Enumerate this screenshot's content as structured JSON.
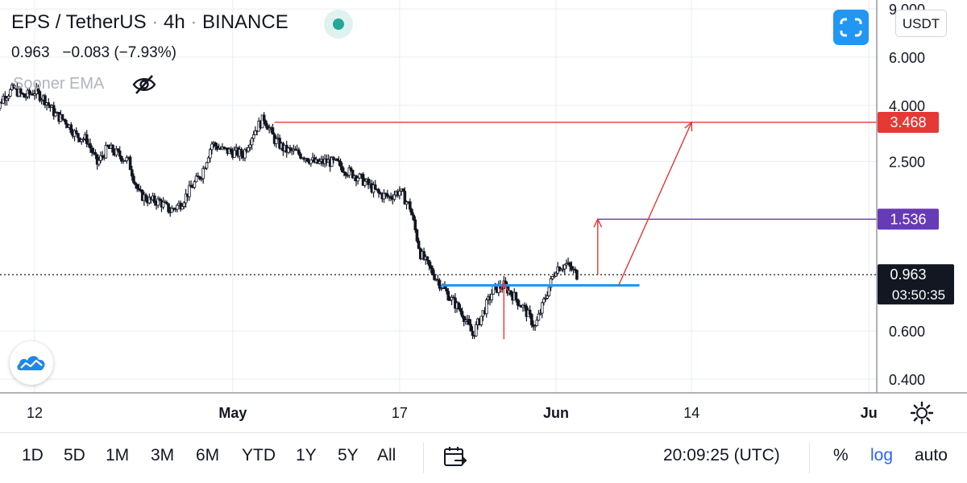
{
  "header": {
    "symbol": "EPS / TetherUS",
    "interval": "4h",
    "exchange": "BINANCE",
    "separator": "·"
  },
  "price_line": {
    "last": "0.963",
    "change": "−0.083",
    "change_pct": "(−7.93%)"
  },
  "indicator": {
    "name": "Sooner EMA"
  },
  "currency_button": {
    "label": "USDT"
  },
  "price_labels": {
    "target_high": "3.468",
    "target_mid": "1.536",
    "current": "0.963",
    "countdown": "03:50:35"
  },
  "toolbar": {
    "ranges": [
      "1D",
      "5D",
      "1M",
      "3M",
      "6M",
      "YTD",
      "1Y",
      "5Y",
      "All"
    ],
    "time": "20:09:25 (UTC)",
    "percent": "%",
    "log": "log",
    "auto": "auto"
  },
  "colors": {
    "grid": "#e9ecf2",
    "candle": "#131722",
    "red": "#e53935",
    "purple": "#673ab7",
    "blue": "#2196f3",
    "black": "#131722"
  },
  "chart_data": {
    "type": "candlestick",
    "y_scale": "log",
    "ylim": [
      0.36,
      9.0
    ],
    "y_ticks": [
      {
        "label": "9.000",
        "value": 9.0
      },
      {
        "label": "6.000",
        "value": 6.0
      },
      {
        "label": "4.000",
        "value": 4.0
      },
      {
        "label": "2.500",
        "value": 2.5
      },
      {
        "label": "0.600",
        "value": 0.6
      },
      {
        "label": "0.400",
        "value": 0.4
      }
    ],
    "x_ticks": [
      {
        "label": "12",
        "date": "2021-04-12"
      },
      {
        "label": "May",
        "date": "2021-05-01"
      },
      {
        "label": "17",
        "date": "2021-05-17"
      },
      {
        "label": "Jun",
        "date": "2021-06-01"
      },
      {
        "label": "14",
        "date": "2021-06-14"
      },
      {
        "label": "Ju",
        "date": "2021-07-01"
      }
    ],
    "x_range": [
      "2021-04-08",
      "2021-07-01"
    ],
    "price_path": [
      [
        "2021-04-08",
        3.6
      ],
      [
        "2021-04-09",
        4.3
      ],
      [
        "2021-04-10",
        4.6
      ],
      [
        "2021-04-11",
        4.3
      ],
      [
        "2021-04-12",
        4.5
      ],
      [
        "2021-04-13",
        4.2
      ],
      [
        "2021-04-14",
        3.7
      ],
      [
        "2021-04-15",
        3.5
      ],
      [
        "2021-04-16",
        3.1
      ],
      [
        "2021-04-17",
        3.0
      ],
      [
        "2021-04-18",
        2.45
      ],
      [
        "2021-04-19",
        2.8
      ],
      [
        "2021-04-20",
        2.65
      ],
      [
        "2021-04-21",
        2.5
      ],
      [
        "2021-04-22",
        1.9
      ],
      [
        "2021-04-23",
        1.8
      ],
      [
        "2021-04-24",
        1.78
      ],
      [
        "2021-04-25",
        1.65
      ],
      [
        "2021-04-26",
        1.75
      ],
      [
        "2021-04-27",
        2.0
      ],
      [
        "2021-04-28",
        2.25
      ],
      [
        "2021-04-29",
        2.9
      ],
      [
        "2021-04-30",
        2.75
      ],
      [
        "2021-05-01",
        2.7
      ],
      [
        "2021-05-02",
        2.65
      ],
      [
        "2021-05-03",
        3.2
      ],
      [
        "2021-05-04",
        3.6
      ],
      [
        "2021-05-05",
        3.0
      ],
      [
        "2021-05-06",
        2.75
      ],
      [
        "2021-05-07",
        2.7
      ],
      [
        "2021-05-08",
        2.6
      ],
      [
        "2021-05-09",
        2.45
      ],
      [
        "2021-05-10",
        2.5
      ],
      [
        "2021-05-11",
        2.45
      ],
      [
        "2021-05-12",
        2.3
      ],
      [
        "2021-05-13",
        2.2
      ],
      [
        "2021-05-14",
        2.05
      ],
      [
        "2021-05-15",
        1.9
      ],
      [
        "2021-05-16",
        1.85
      ],
      [
        "2021-05-17",
        1.95
      ],
      [
        "2021-05-18",
        1.7
      ],
      [
        "2021-05-19",
        1.15
      ],
      [
        "2021-05-20",
        1.0
      ],
      [
        "2021-05-21",
        0.88
      ],
      [
        "2021-05-22",
        0.78
      ],
      [
        "2021-05-23",
        0.7
      ],
      [
        "2021-05-24",
        0.58
      ],
      [
        "2021-05-25",
        0.7
      ],
      [
        "2021-05-26",
        0.85
      ],
      [
        "2021-05-27",
        0.88
      ],
      [
        "2021-05-28",
        0.8
      ],
      [
        "2021-05-29",
        0.72
      ],
      [
        "2021-05-30",
        0.62
      ],
      [
        "2021-05-31",
        0.8
      ],
      [
        "2021-06-01",
        1.02
      ],
      [
        "2021-06-02",
        1.05
      ],
      [
        "2021-06-03",
        0.963
      ]
    ],
    "annotations": [
      {
        "type": "horizontal_line",
        "color": "red",
        "y": 3.468,
        "x_from": "2021-05-05",
        "x_to": "2021-07-01",
        "label": "3.468"
      },
      {
        "type": "horizontal_line",
        "color": "purple",
        "y": 1.536,
        "x_from": "2021-06-05",
        "x_to": "2021-07-01",
        "label": "1.536"
      },
      {
        "type": "horizontal_line",
        "color": "blue",
        "y": 0.88,
        "x_from": "2021-05-21",
        "x_to": "2021-06-09"
      },
      {
        "type": "horizontal_dotted_line",
        "color": "black",
        "y": 0.963,
        "label": "0.963"
      },
      {
        "type": "arrow",
        "color": "red",
        "from": [
          "2021-05-27",
          0.56
        ],
        "to": [
          "2021-05-27",
          0.9
        ]
      },
      {
        "type": "arrow",
        "color": "red",
        "from": [
          "2021-06-05",
          0.96
        ],
        "to": [
          "2021-06-05",
          1.536
        ]
      },
      {
        "type": "arrow",
        "color": "red",
        "from": [
          "2021-06-07",
          0.88
        ],
        "to": [
          "2021-06-14",
          3.468
        ]
      }
    ]
  }
}
